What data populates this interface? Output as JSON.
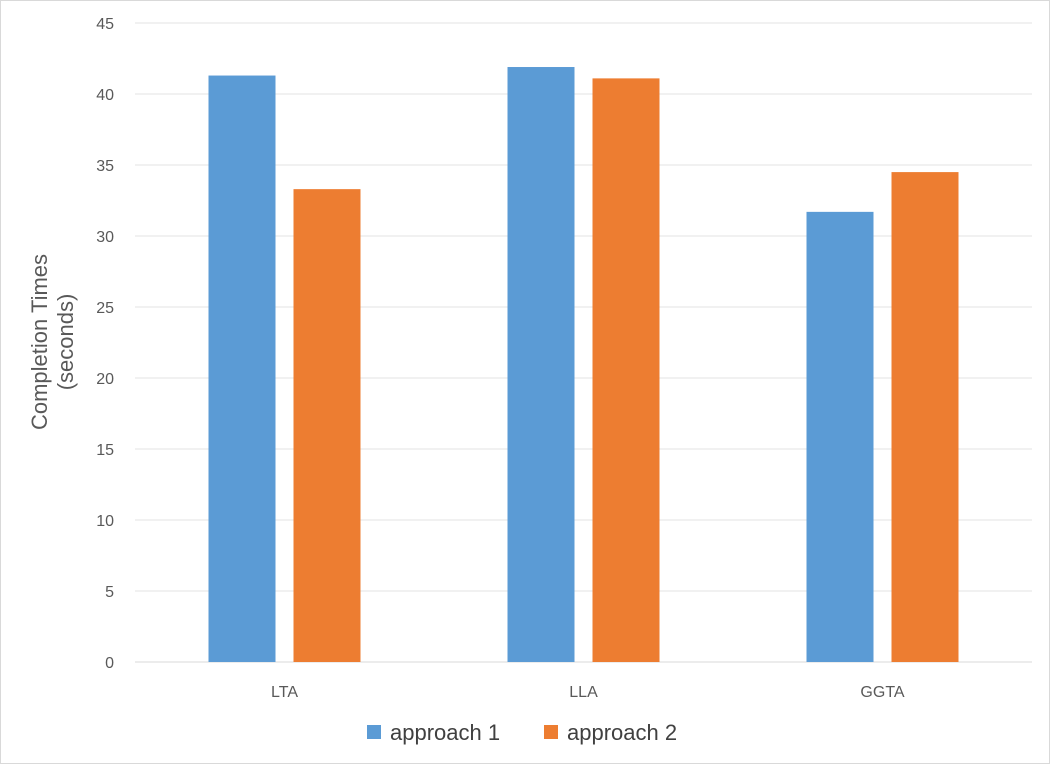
{
  "chart_data": {
    "type": "bar",
    "title": "",
    "xlabel": "",
    "ylabel": [
      "Completion Times",
      "(seconds)"
    ],
    "categories": [
      "LTA",
      "LLA",
      "GGTA"
    ],
    "series": [
      {
        "name": "approach 1",
        "color": "#5b9bd5",
        "values": [
          41.3,
          41.9,
          31.7
        ]
      },
      {
        "name": "approach 2",
        "color": "#ed7d31",
        "values": [
          33.3,
          41.1,
          34.5
        ]
      }
    ],
    "ylim": [
      0,
      45
    ],
    "yticks": [
      0,
      5,
      10,
      15,
      20,
      25,
      30,
      35,
      40,
      45
    ],
    "grid": true,
    "legend_position": "bottom"
  }
}
